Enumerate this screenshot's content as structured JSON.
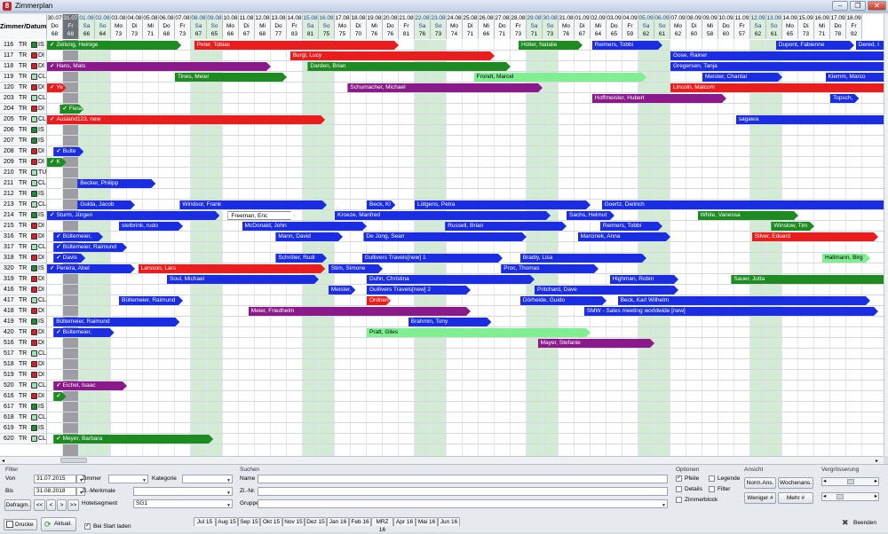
{
  "window": {
    "title": "Zimmerplan",
    "minimize_label": "–",
    "maximize_label": "❐",
    "close_label": "✕"
  },
  "header": {
    "corner_label": "Zimmer/Datum"
  },
  "days": [
    {
      "d": "30.07",
      "w": "Do",
      "n": "68"
    },
    {
      "d": "31.07",
      "w": "Fr",
      "n": "68",
      "today": true
    },
    {
      "d": "01.08",
      "w": "Sa",
      "n": "66",
      "we": true
    },
    {
      "d": "02.08",
      "w": "So",
      "n": "64",
      "we": true
    },
    {
      "d": "03.08",
      "w": "Mo",
      "n": "73"
    },
    {
      "d": "04.08",
      "w": "Di",
      "n": "73"
    },
    {
      "d": "05.08",
      "w": "Mi",
      "n": "71"
    },
    {
      "d": "06.08",
      "w": "Do",
      "n": "68"
    },
    {
      "d": "07.08",
      "w": "Fr",
      "n": "73"
    },
    {
      "d": "08.08",
      "w": "Sa",
      "n": "67",
      "we": true
    },
    {
      "d": "09.08",
      "w": "So",
      "n": "65",
      "we": true
    },
    {
      "d": "10.08",
      "w": "Mo",
      "n": "66"
    },
    {
      "d": "11.08",
      "w": "Di",
      "n": "67"
    },
    {
      "d": "12.08",
      "w": "Mi",
      "n": "68"
    },
    {
      "d": "13.08",
      "w": "Do",
      "n": "77"
    },
    {
      "d": "14.08",
      "w": "Fr",
      "n": "83"
    },
    {
      "d": "15.08",
      "w": "Sa",
      "n": "81",
      "we": true
    },
    {
      "d": "16.08",
      "w": "So",
      "n": "75",
      "we": true
    },
    {
      "d": "17.08",
      "w": "Mo",
      "n": "75"
    },
    {
      "d": "18.08",
      "w": "Di",
      "n": "70"
    },
    {
      "d": "19.08",
      "w": "Mi",
      "n": "76"
    },
    {
      "d": "20.08",
      "w": "Do",
      "n": "76"
    },
    {
      "d": "21.08",
      "w": "Fr",
      "n": "81"
    },
    {
      "d": "22.08",
      "w": "Sa",
      "n": "76",
      "we": true
    },
    {
      "d": "23.08",
      "w": "So",
      "n": "73",
      "we": true
    },
    {
      "d": "24.08",
      "w": "Mo",
      "n": "74"
    },
    {
      "d": "25.08",
      "w": "Di",
      "n": "71"
    },
    {
      "d": "26.08",
      "w": "Mi",
      "n": "66"
    },
    {
      "d": "27.08",
      "w": "Do",
      "n": "71"
    },
    {
      "d": "28.08",
      "w": "Fr",
      "n": "73"
    },
    {
      "d": "29.08",
      "w": "Sa",
      "n": "71",
      "we": true
    },
    {
      "d": "30.08",
      "w": "So",
      "n": "73",
      "we": true
    },
    {
      "d": "31.08",
      "w": "Mo",
      "n": "76"
    },
    {
      "d": "01.09",
      "w": "Di",
      "n": "67"
    },
    {
      "d": "02.09",
      "w": "Mi",
      "n": "64"
    },
    {
      "d": "03.09",
      "w": "Do",
      "n": "65"
    },
    {
      "d": "04.09",
      "w": "Fr",
      "n": "59"
    },
    {
      "d": "05.09",
      "w": "Sa",
      "n": "62",
      "we": true
    },
    {
      "d": "06.09",
      "w": "So",
      "n": "61",
      "we": true
    },
    {
      "d": "07.09",
      "w": "Mo",
      "n": "62"
    },
    {
      "d": "08.09",
      "w": "Di",
      "n": "60"
    },
    {
      "d": "09.09",
      "w": "Mi",
      "n": "58"
    },
    {
      "d": "10.09",
      "w": "Do",
      "n": "60"
    },
    {
      "d": "11.09",
      "w": "Fr",
      "n": "57"
    },
    {
      "d": "12.09",
      "w": "Sa",
      "n": "62",
      "we": true
    },
    {
      "d": "13.09",
      "w": "So",
      "n": "61",
      "we": true
    },
    {
      "d": "14.09",
      "w": "Mo",
      "n": "65"
    },
    {
      "d": "15.09",
      "w": "Di",
      "n": "73"
    },
    {
      "d": "16.09",
      "w": "Mi",
      "n": "71"
    },
    {
      "d": "17.09",
      "w": "Do",
      "n": "78"
    },
    {
      "d": "18.09",
      "w": "Fr",
      "n": "92"
    }
  ],
  "rooms": [
    {
      "r": "116",
      "c": "TR",
      "s": "IS",
      "sc": "#1a8c2e"
    },
    {
      "r": "117",
      "c": "TR",
      "s": "DI",
      "sc": "#d42020"
    },
    {
      "r": "118",
      "c": "TR",
      "s": "DI",
      "sc": "#d42020"
    },
    {
      "r": "119",
      "c": "TR",
      "s": "CL",
      "sc": "#9be6b0"
    },
    {
      "r": "120",
      "c": "TR",
      "s": "DI",
      "sc": "#d42020"
    },
    {
      "r": "203",
      "c": "TR",
      "s": "CL",
      "sc": "#9be6b0"
    },
    {
      "r": "204",
      "c": "TR",
      "s": "DI",
      "sc": "#d42020"
    },
    {
      "r": "205",
      "c": "TR",
      "s": "CL",
      "sc": "#9be6b0"
    },
    {
      "r": "206",
      "c": "TR",
      "s": "IS",
      "sc": "#1a8c2e"
    },
    {
      "r": "207",
      "c": "TR",
      "s": "IS",
      "sc": "#1a8c2e"
    },
    {
      "r": "208",
      "c": "TR",
      "s": "DI",
      "sc": "#d42020"
    },
    {
      "r": "209",
      "c": "TR",
      "s": "DI",
      "sc": "#d42020"
    },
    {
      "r": "210",
      "c": "TR",
      "s": "TU",
      "sc": "#9be6b0"
    },
    {
      "r": "211",
      "c": "TR",
      "s": "CL",
      "sc": "#9be6b0"
    },
    {
      "r": "212",
      "c": "TR",
      "s": "IS",
      "sc": "#1a8c2e"
    },
    {
      "r": "213",
      "c": "TR",
      "s": "CL",
      "sc": "#9be6b0"
    },
    {
      "r": "214",
      "c": "TR",
      "s": "IS",
      "sc": "#1a8c2e"
    },
    {
      "r": "215",
      "c": "TR",
      "s": "DI",
      "sc": "#d42020"
    },
    {
      "r": "316",
      "c": "TR",
      "s": "DI",
      "sc": "#d42020"
    },
    {
      "r": "317",
      "c": "TR",
      "s": "CL",
      "sc": "#9be6b0"
    },
    {
      "r": "318",
      "c": "TR",
      "s": "DI",
      "sc": "#d42020"
    },
    {
      "r": "320",
      "c": "TR",
      "s": "IS",
      "sc": "#1a8c2e"
    },
    {
      "r": "319",
      "c": "TR",
      "s": "DI",
      "sc": "#d42020"
    },
    {
      "r": "416",
      "c": "TR",
      "s": "DI",
      "sc": "#d42020"
    },
    {
      "r": "417",
      "c": "TR",
      "s": "CL",
      "sc": "#9be6b0"
    },
    {
      "r": "418",
      "c": "TR",
      "s": "DI",
      "sc": "#d42020"
    },
    {
      "r": "419",
      "c": "TR",
      "s": "IS",
      "sc": "#1a8c2e"
    },
    {
      "r": "420",
      "c": "TR",
      "s": "DI",
      "sc": "#d42020"
    },
    {
      "r": "516",
      "c": "TR",
      "s": "DI",
      "sc": "#d42020"
    },
    {
      "r": "517",
      "c": "TR",
      "s": "CL",
      "sc": "#9be6b0"
    },
    {
      "r": "518",
      "c": "TR",
      "s": "DI",
      "sc": "#d42020"
    },
    {
      "r": "519",
      "c": "TR",
      "s": "DI",
      "sc": "#d42020"
    },
    {
      "r": "520",
      "c": "TR",
      "s": "CL",
      "sc": "#9be6b0"
    },
    {
      "r": "616",
      "c": "TR",
      "s": "DI",
      "sc": "#d42020"
    },
    {
      "r": "617",
      "c": "TR",
      "s": "IS",
      "sc": "#1a8c2e"
    },
    {
      "r": "618",
      "c": "TR",
      "s": "CL",
      "sc": "#9be6b0"
    },
    {
      "r": "619",
      "c": "TR",
      "s": "IS",
      "sc": "#1a8c2e"
    },
    {
      "r": "620",
      "c": "TR",
      "s": "CL",
      "sc": "#9be6b0"
    }
  ],
  "bookings": [
    {
      "row": 0,
      "s": 0,
      "e": 8.4,
      "name": "Zeilung, Heinige",
      "c": "#1e8a22",
      "chk": true
    },
    {
      "row": 0,
      "s": 9.2,
      "e": 22,
      "name": "Peter, Tobias",
      "c": "#e81e1e"
    },
    {
      "row": 0,
      "s": 29.5,
      "e": 33.5,
      "name": "Hüller, Natalie",
      "c": "#1e8a22"
    },
    {
      "row": 0,
      "s": 34.1,
      "e": 38.5,
      "name": "Reimers, Tobbi",
      "c": "#1a2de0"
    },
    {
      "row": 0,
      "s": 45.6,
      "e": 50.5,
      "name": "Dupont, Fabienne",
      "c": "#1a2de0"
    },
    {
      "row": 0,
      "s": 50.6,
      "e": 53,
      "name": "Dered, I",
      "c": "#1a2de0"
    },
    {
      "row": 1,
      "s": 15.2,
      "e": 28,
      "name": "Burgl, Lucy",
      "c": "#e81e1e"
    },
    {
      "row": 1,
      "s": 39,
      "e": 53,
      "name": "Gose, Rainer",
      "c": "#1a2de0"
    },
    {
      "row": 2,
      "s": 0,
      "e": 14,
      "name": "Hans, Mats",
      "c": "#8a1a8a",
      "chk": true
    },
    {
      "row": 2,
      "s": 16.3,
      "e": 29,
      "name": "Darden, Brian",
      "c": "#1e8a22"
    },
    {
      "row": 2,
      "s": 39,
      "e": 53,
      "name": "Gregersen, Tanja",
      "c": "#1a2de0"
    },
    {
      "row": 3,
      "s": 8,
      "e": 15,
      "name": "Tines, Meier",
      "c": "#1e8a22"
    },
    {
      "row": 3,
      "s": 26.7,
      "e": 37.5,
      "name": "Frondt, Marcel",
      "c": "#7fef92",
      "dark": true
    },
    {
      "row": 3,
      "s": 41,
      "e": 46,
      "name": "Meister, Chantal",
      "c": "#1a2de0"
    },
    {
      "row": 3,
      "s": 48.7,
      "e": 53,
      "name": "Klemm, Marco",
      "c": "#1a2de0"
    },
    {
      "row": 4,
      "s": 0,
      "e": 1.2,
      "name": "Ye",
      "c": "#e81e1e",
      "chk": true
    },
    {
      "row": 4,
      "s": 18.8,
      "e": 31,
      "name": "Schumacher, Michael",
      "c": "#8a1a8a"
    },
    {
      "row": 4,
      "s": 39,
      "e": 53,
      "name": "Lincoln, Malcom",
      "c": "#e81e1e"
    },
    {
      "row": 5,
      "s": 34.1,
      "e": 42.5,
      "name": "Hoffmeister, Hubert",
      "c": "#8a1a8a"
    },
    {
      "row": 5,
      "s": 49,
      "e": 50.8,
      "name": "Topsch,",
      "c": "#1a2de0"
    },
    {
      "row": 6,
      "s": 0.8,
      "e": 2.3,
      "name": "Fiesel",
      "c": "#1e8a22",
      "chk": true
    },
    {
      "row": 7,
      "s": 0,
      "e": 17.4,
      "name": "Ausland123, new",
      "c": "#e81e1e",
      "chk": true
    },
    {
      "row": 7,
      "s": 43.1,
      "e": 53,
      "name": "sagawa",
      "c": "#1a2de0"
    },
    {
      "row": 10,
      "s": 0.4,
      "e": 2.3,
      "name": "Bulte",
      "c": "#1a2de0",
      "chk": true
    },
    {
      "row": 11,
      "s": 0,
      "e": 1.2,
      "name": "K",
      "c": "#1e8a22",
      "chk": true
    },
    {
      "row": 13,
      "s": 1.9,
      "e": 6.8,
      "name": "Becker, Philipp",
      "c": "#1a2de0"
    },
    {
      "row": 15,
      "s": 1.9,
      "e": 5.5,
      "name": "Gulda, Jacob",
      "c": "#1a2de0"
    },
    {
      "row": 15,
      "s": 8.3,
      "e": 17.5,
      "name": "Windsor, Frank",
      "c": "#1a2de0"
    },
    {
      "row": 15,
      "s": 20,
      "e": 21.8,
      "name": "Beck, Kl",
      "c": "#1a2de0"
    },
    {
      "row": 15,
      "s": 23,
      "e": 34,
      "name": "Lütgens, Petra",
      "c": "#1a2de0"
    },
    {
      "row": 15,
      "s": 34.7,
      "e": 53,
      "name": "Goertz, Dietrich",
      "c": "#1a2de0"
    },
    {
      "row": 16,
      "s": 0,
      "e": 10.8,
      "name": "Sturm, Jürgen",
      "c": "#1a2de0",
      "chk": true
    },
    {
      "row": 16,
      "s": 11.3,
      "e": 15.5,
      "name": "Freeman, Eric",
      "c": "#ffffff",
      "dark": true
    },
    {
      "row": 16,
      "s": 18,
      "e": 31.5,
      "name": "Kroeze, Manfred",
      "c": "#1a2de0"
    },
    {
      "row": 16,
      "s": 32.5,
      "e": 35.5,
      "name": "Sachs, Helmut",
      "c": "#1a2de0"
    },
    {
      "row": 16,
      "s": 40.7,
      "e": 47,
      "name": "White, Vanessa",
      "c": "#1e8a22"
    },
    {
      "row": 17,
      "s": 4.5,
      "e": 8.5,
      "name": "stelbrink, rudo",
      "c": "#1a2de0"
    },
    {
      "row": 17,
      "s": 12.2,
      "e": 20,
      "name": "McDonald, John",
      "c": "#1a2de0"
    },
    {
      "row": 17,
      "s": 24.9,
      "e": 32.5,
      "name": "Russell, Brian",
      "c": "#1a2de0"
    },
    {
      "row": 17,
      "s": 34.6,
      "e": 38.5,
      "name": "Reimers, Tobbi",
      "c": "#1a2de0"
    },
    {
      "row": 17,
      "s": 45.3,
      "e": 48,
      "name": "Winslow, Tim",
      "c": "#1e8a22"
    },
    {
      "row": 18,
      "s": 0.4,
      "e": 3.5,
      "name": "Bültemeier,",
      "c": "#1a2de0",
      "chk": true
    },
    {
      "row": 18,
      "s": 14.3,
      "e": 18.5,
      "name": "Mann, David",
      "c": "#1a2de0"
    },
    {
      "row": 18,
      "s": 19.8,
      "e": 30,
      "name": "De Jong, Sean",
      "c": "#1a2de0"
    },
    {
      "row": 18,
      "s": 33.2,
      "e": 39,
      "name": "Marcinek, Anna",
      "c": "#1a2de0"
    },
    {
      "row": 18,
      "s": 44.1,
      "e": 52,
      "name": "Silver, Eduard",
      "c": "#e81e1e"
    },
    {
      "row": 19,
      "s": 0.4,
      "e": 5,
      "name": "Bültemeier, Raimund",
      "c": "#1a2de0",
      "chk": true
    },
    {
      "row": 20,
      "s": 0.4,
      "e": 2.4,
      "name": "Davis",
      "c": "#1a2de0",
      "chk": true
    },
    {
      "row": 20,
      "s": 14.3,
      "e": 17.5,
      "name": "Schröter, Rudi",
      "c": "#1a2de0"
    },
    {
      "row": 20,
      "s": 19.7,
      "e": 28.5,
      "name": "Gullivers Travels[new] 1",
      "c": "#1a2de0"
    },
    {
      "row": 20,
      "s": 29.6,
      "e": 37.5,
      "name": "Bradly, Lisa",
      "c": "#1a2de0"
    },
    {
      "row": 20,
      "s": 48.5,
      "e": 51.5,
      "name": "Hallmann, Birg",
      "c": "#7fef92",
      "dark": true
    },
    {
      "row": 21,
      "s": 0,
      "e": 5.5,
      "name": "Pereira, Abel",
      "c": "#1a2de0",
      "chk": true
    },
    {
      "row": 21,
      "s": 5.7,
      "e": 17.4,
      "name": "Larsson, Lars",
      "c": "#e81e1e"
    },
    {
      "row": 21,
      "s": 17.6,
      "e": 21,
      "name": "Stim, Simone",
      "c": "#1a2de0"
    },
    {
      "row": 21,
      "s": 28.4,
      "e": 34.5,
      "name": "Proc, Thomas",
      "c": "#1a2de0"
    },
    {
      "row": 22,
      "s": 7.5,
      "e": 17,
      "name": "Soul, Michael",
      "c": "#1a2de0"
    },
    {
      "row": 22,
      "s": 20,
      "e": 30.5,
      "name": "Duhn, Christina",
      "c": "#1a2de0"
    },
    {
      "row": 22,
      "s": 35.2,
      "e": 39.5,
      "name": "Highman, Robin",
      "c": "#1a2de0"
    },
    {
      "row": 22,
      "s": 42.8,
      "e": 53,
      "name": "Sauer, Jutta",
      "c": "#1e8a22"
    },
    {
      "row": 23,
      "s": 17.6,
      "e": 19.3,
      "name": "Meister,",
      "c": "#1a2de0"
    },
    {
      "row": 23,
      "s": 20,
      "e": 26.5,
      "name": "Gullivers Travels[new] 2",
      "c": "#1a2de0"
    },
    {
      "row": 23,
      "s": 30.5,
      "e": 39.5,
      "name": "Pritchard, Dave",
      "c": "#1a2de0"
    },
    {
      "row": 24,
      "s": 4.5,
      "e": 8.5,
      "name": "Bültemeier, Raimund",
      "c": "#1a2de0"
    },
    {
      "row": 24,
      "s": 20,
      "e": 21.5,
      "name": "Ordnen",
      "c": "#e81e1e"
    },
    {
      "row": 24,
      "s": 29.6,
      "e": 35,
      "name": "Dörheide, Guido",
      "c": "#1a2de0"
    },
    {
      "row": 24,
      "s": 35.7,
      "e": 51.5,
      "name": "Beck, Karl Wilhelm",
      "c": "#1a2de0"
    },
    {
      "row": 25,
      "s": 12.6,
      "e": 26.5,
      "name": "Meier, Friedhelm",
      "c": "#8a1a8a"
    },
    {
      "row": 25,
      "s": 33.6,
      "e": 52,
      "name": "SMW - Sales meeting worldwide [new]",
      "c": "#1a2de0"
    },
    {
      "row": 26,
      "s": 0.4,
      "e": 8.3,
      "name": "Bültemeier, Raimund",
      "c": "#1a2de0"
    },
    {
      "row": 26,
      "s": 22.6,
      "e": 27.8,
      "name": "Brahmin, Tony",
      "c": "#1a2de0"
    },
    {
      "row": 27,
      "s": 0.4,
      "e": 4.2,
      "name": "Bültemeier,",
      "c": "#1a2de0",
      "chk": true
    },
    {
      "row": 27,
      "s": 20,
      "e": 34,
      "name": "Pratt, Giles",
      "c": "#7fef92",
      "dark": true
    },
    {
      "row": 28,
      "s": 30.7,
      "e": 38,
      "name": "Mayer, Stefanie",
      "c": "#8a1a8a"
    },
    {
      "row": 32,
      "s": 0.4,
      "e": 5,
      "name": "Eichel, Isaac",
      "c": "#8a1a8a",
      "chk": true
    },
    {
      "row": 33,
      "s": 0.4,
      "e": 1.2,
      "name": "",
      "c": "#1e8a22",
      "chk": true
    },
    {
      "row": 37,
      "s": 0.4,
      "e": 10.4,
      "name": "Meyer, Barbara",
      "c": "#1e8a22",
      "chk": true
    }
  ],
  "bottom": {
    "filter_title": "Filter",
    "von_label": "Von",
    "von_value": "31.07.2015",
    "bis_label": "Bis",
    "bis_value": "31.08.2018",
    "defrag_label": "Defragm.",
    "nav_first": "<<",
    "nav_prev": "<",
    "nav_next": ">",
    "nav_last": ">>",
    "zimmer_label": "Zimmer",
    "kategorie_label": "Kategorie",
    "zi_merkmale_label": "Zi.-Merkmale",
    "hotelsegment_label": "Hotelsegment",
    "hotelsegment_value": "SG1",
    "suchen_title": "Suchen",
    "name_label": "Name",
    "zi_nr_label": "Zi.-Nr.",
    "gruppe_label": "Gruppe",
    "optionen_title": "Optionen",
    "pfeile_label": "Pfeile",
    "details_label": "Details",
    "zimmerblock_label": "Zimmerblock",
    "legende_label": "Legende",
    "filter_label": "Filter",
    "ansicht_title": "Ansicht",
    "norm_ans": "Norm.Ans.",
    "wochenans": "Wochenans.",
    "weniger": "Weniger #",
    "mehr": "Mehr #",
    "vergr_title": "Vergrösserung",
    "drucken": "Drucke",
    "aktual": "Aktual.",
    "bei_start": "Bei Start laden",
    "beenden": "Beenden",
    "months": [
      "Jul 15",
      "Aug 15",
      "Sep 15",
      "Okt 15",
      "Nov 15",
      "Dez 15",
      "Jan 16",
      "Feb 16",
      "MRZ 16",
      "Apr 16",
      "Mai 16",
      "Jun 16"
    ]
  },
  "colors": {
    "weekend": "#d3ebd4",
    "today": "#9c9ea4",
    "grid_line": "#d5d9de"
  }
}
